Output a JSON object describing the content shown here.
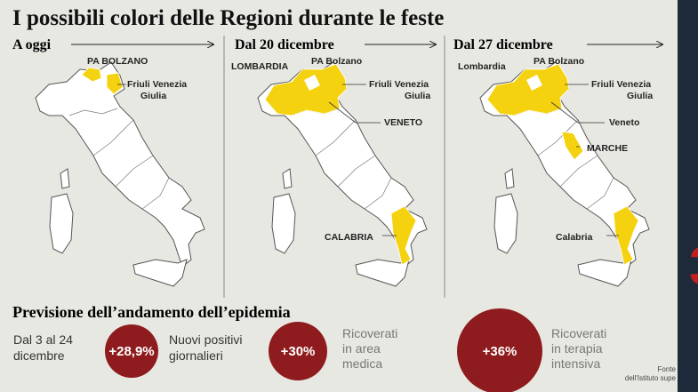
{
  "title": "I possibili colori delle Regioni durante le feste",
  "panels": [
    {
      "heading": "A oggi",
      "labels": [
        "PA BOLZANO",
        "Friuli Venezia",
        "Giulia"
      ]
    },
    {
      "heading": "Dal 20 dicembre",
      "labels": [
        "LOMBARDIA",
        "PA Bolzano",
        "Friuli Venezia",
        "Giulia",
        "VENETO",
        "CALABRIA"
      ]
    },
    {
      "heading": "Dal 27 dicembre",
      "labels": [
        "Lombardia",
        "PA Bolzano",
        "Friuli Venezia",
        "Giulia",
        "Veneto",
        "MARCHE",
        "Calabria"
      ]
    }
  ],
  "forecast": {
    "title": "Previsione dell’andamento dell’epidemia",
    "period": [
      "Dal 3 al 24",
      "dicembre"
    ],
    "stats": [
      {
        "value": "+28,9%",
        "label": [
          "Nuovi positivi",
          "giornalieri"
        ]
      },
      {
        "value": "+30%",
        "label": [
          "Ricoverati",
          "in area",
          "medica"
        ]
      },
      {
        "value": "+36%",
        "label": [
          "Ricoverati",
          "in terapia",
          "intensiva"
        ]
      }
    ]
  },
  "source": [
    "Fonte",
    "dell'Istituto supe"
  ]
}
